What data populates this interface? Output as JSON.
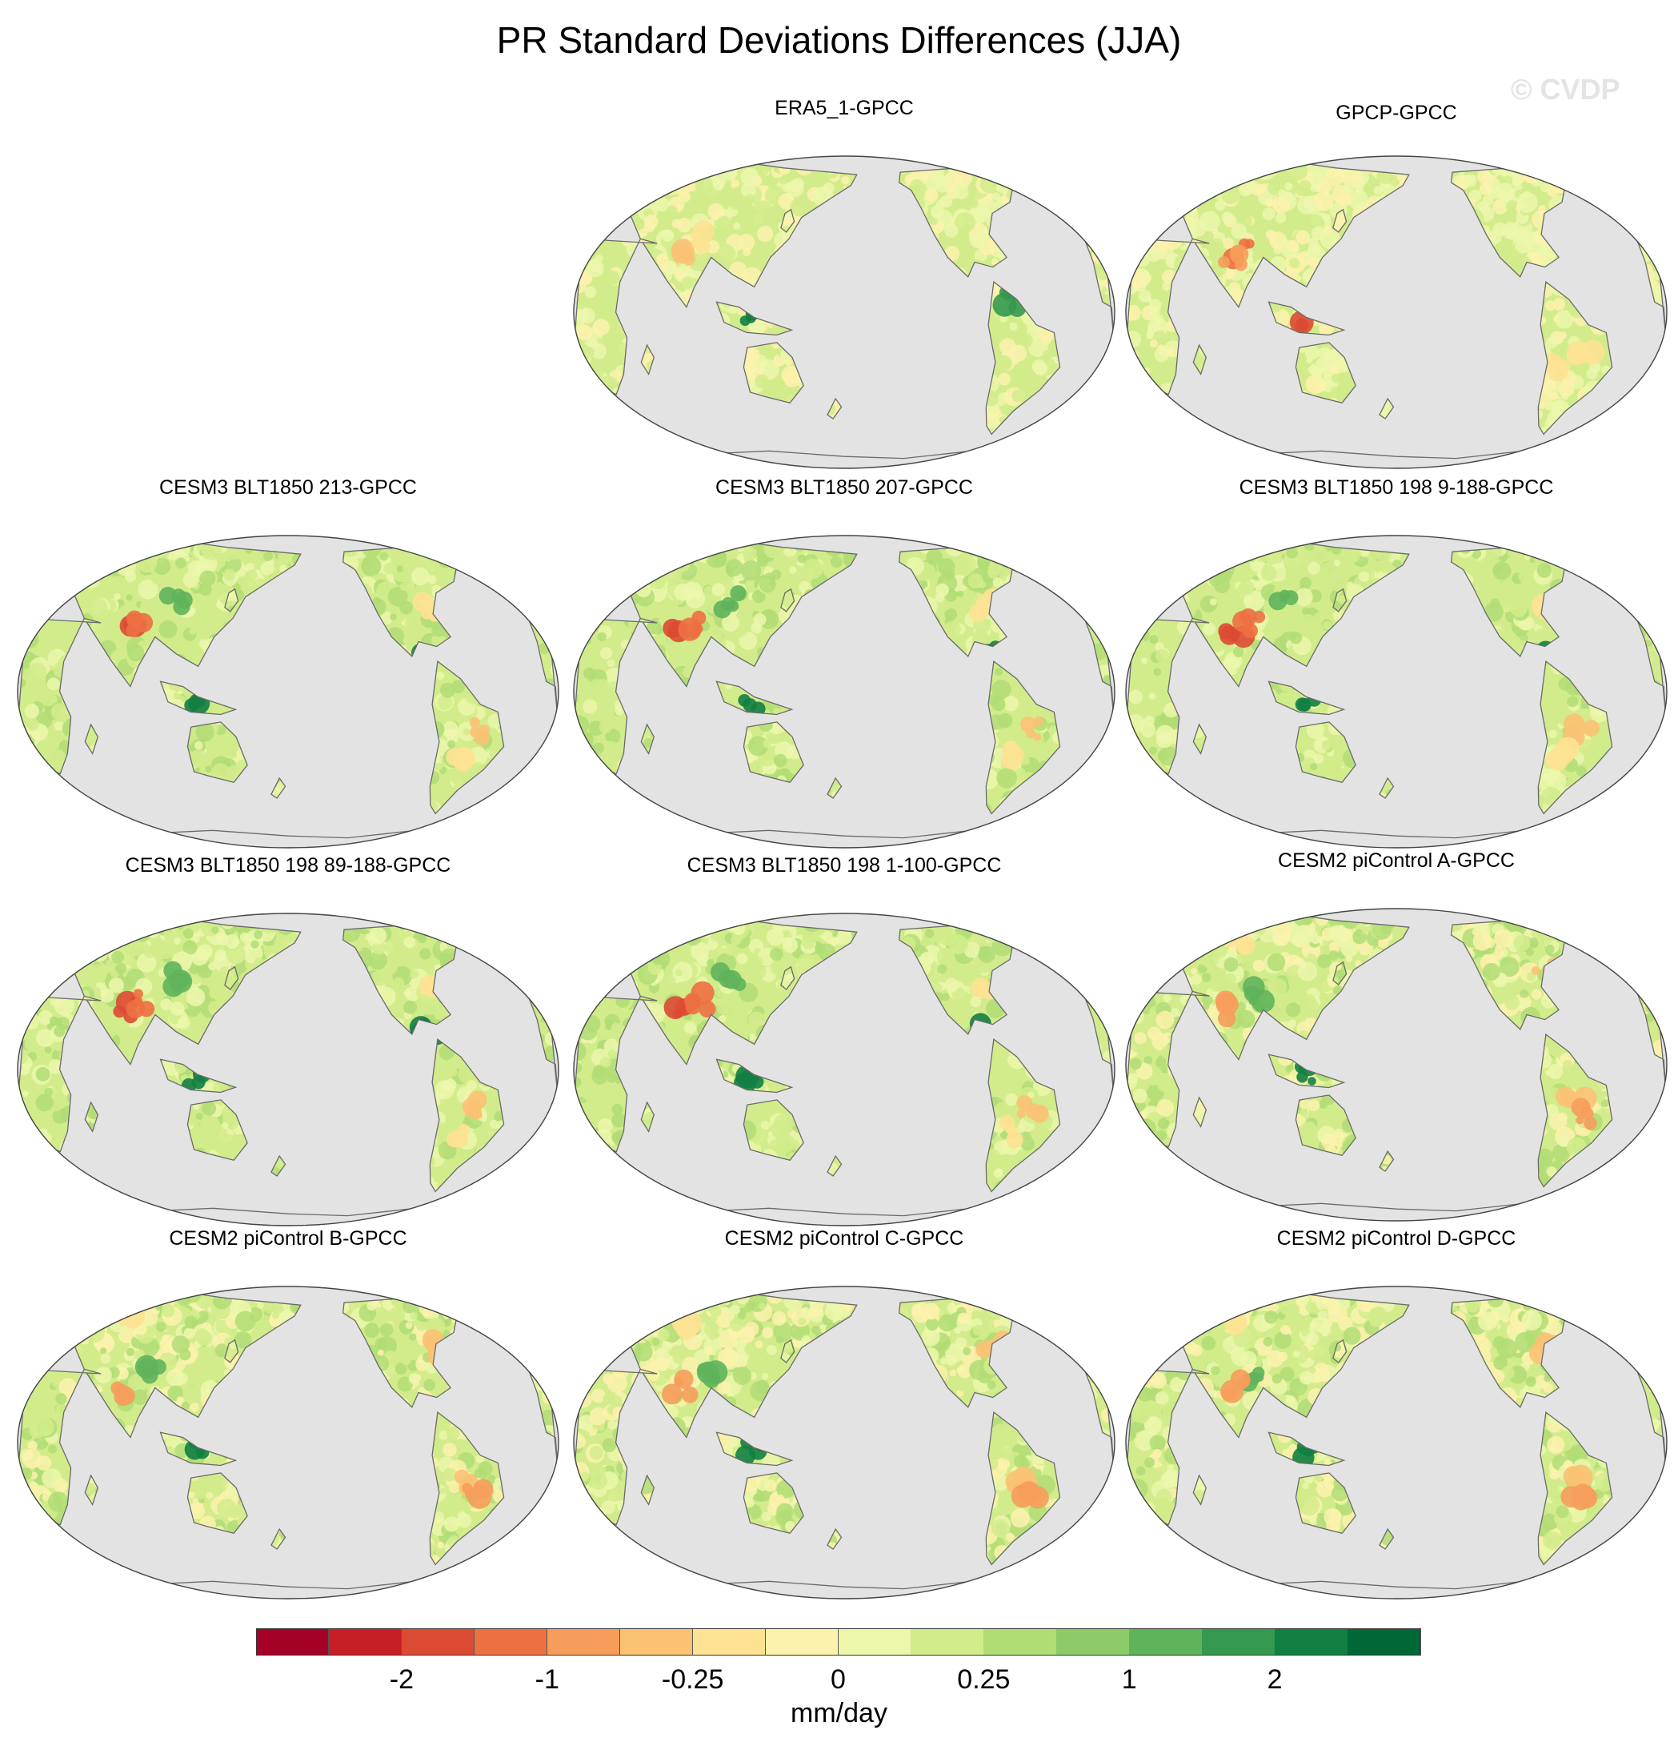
{
  "title": "PR Standard Deviations Differences (JJA)",
  "watermark": "© CVDP",
  "panels": [
    {
      "label": "ERA5_1-GPCC",
      "pattern": "obs1"
    },
    {
      "label": "GPCP-GPCC",
      "pattern": "obs2"
    },
    {
      "label": "CESM3 BLT1850 213-GPCC",
      "pattern": "cesm3"
    },
    {
      "label": "CESM3 BLT1850 207-GPCC",
      "pattern": "cesm3"
    },
    {
      "label": "CESM3 BLT1850 198 9-188-GPCC",
      "pattern": "cesm3"
    },
    {
      "label": "CESM3 BLT1850 198 89-188-GPCC",
      "pattern": "cesm3"
    },
    {
      "label": "CESM3 BLT1850 198 1-100-GPCC",
      "pattern": "cesm3"
    },
    {
      "label": "CESM2 piControl A-GPCC",
      "pattern": "cesm2"
    },
    {
      "label": "CESM2 piControl B-GPCC",
      "pattern": "cesm2"
    },
    {
      "label": "CESM2 piControl C-GPCC",
      "pattern": "cesm2"
    },
    {
      "label": "CESM2 piControl D-GPCC",
      "pattern": "cesm2"
    }
  ],
  "colorbar": {
    "units": "mm/day",
    "colors": [
      "#a50026",
      "#c61f26",
      "#dd4a33",
      "#ed7042",
      "#f69d5b",
      "#fbc274",
      "#fde293",
      "#fdf2ad",
      "#ecf7ab",
      "#d2ec8c",
      "#b1dd75",
      "#8ccb67",
      "#5fb45b",
      "#34994f",
      "#128042",
      "#006837"
    ],
    "tick_labels": [
      "-2",
      "-1",
      "-0.25",
      "0",
      "0.25",
      "1",
      "2"
    ]
  },
  "style": {
    "ocean_color": "#e3e3e3",
    "coast_color": "#6a6a6a"
  }
}
